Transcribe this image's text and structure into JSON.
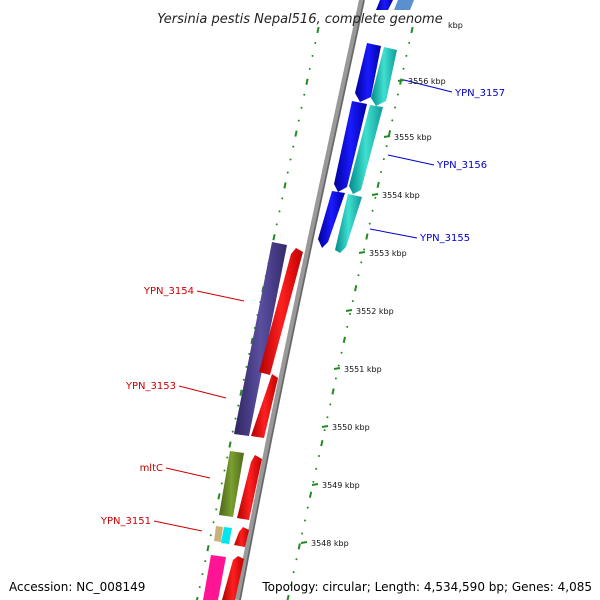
{
  "title": "Yersinia pestis Nepal516, complete genome",
  "footer": {
    "accession": "Accession: NC_008149",
    "summary": "Topology: circular; Length: 4,534,590 bp; Genes: 4,085"
  },
  "ticks": [
    {
      "label": "3556 kbp",
      "kbp": 3556
    },
    {
      "label": "3555 kbp",
      "kbp": 3555
    },
    {
      "label": "3554 kbp",
      "kbp": 3554
    },
    {
      "label": "3553 kbp",
      "kbp": 3553
    },
    {
      "label": "3552 kbp",
      "kbp": 3552
    },
    {
      "label": "3551 kbp",
      "kbp": 3551
    },
    {
      "label": "3550 kbp",
      "kbp": 3550
    },
    {
      "label": "3549 kbp",
      "kbp": 3549
    },
    {
      "label": "3548 kbp",
      "kbp": 3548
    }
  ],
  "top_partial_tick": "kbp",
  "gene_labels": [
    {
      "name": "YPN_3157",
      "strand": "forward",
      "color": "#0000cc"
    },
    {
      "name": "YPN_3156",
      "strand": "forward",
      "color": "#0000cc"
    },
    {
      "name": "YPN_3155",
      "strand": "forward",
      "color": "#0000cc"
    },
    {
      "name": "YPN_3154",
      "strand": "reverse",
      "color": "#cc0000"
    },
    {
      "name": "YPN_3153",
      "strand": "reverse",
      "color": "#cc0000"
    },
    {
      "name": "mltC",
      "strand": "reverse",
      "color": "#cc0000"
    },
    {
      "name": "YPN_3151",
      "strand": "reverse",
      "color": "#cc0000"
    }
  ],
  "colors": {
    "forward_cds": "#0000ee",
    "forward_gene": "#22cccc",
    "reverse_gene": "#ff0000",
    "reverse_cds_purple": "#4b3f8f",
    "reverse_cds_olive": "#6b8e23",
    "reverse_cds_tan": "#c8b27a",
    "reverse_cds_cyan": "#00e5ee",
    "reverse_cds_magenta": "#ff1493",
    "backbone": "#888888",
    "tick": "#228b22"
  }
}
